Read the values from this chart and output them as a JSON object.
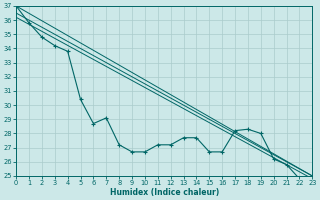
{
  "xlabel": "Humidex (Indice chaleur)",
  "background_color": "#cce8e8",
  "grid_color": "#aacccc",
  "line_color": "#006666",
  "xlim": [
    0,
    23
  ],
  "ylim": [
    25,
    37
  ],
  "yticks": [
    25,
    26,
    27,
    28,
    29,
    30,
    31,
    32,
    33,
    34,
    35,
    36,
    37
  ],
  "xticks": [
    0,
    1,
    2,
    3,
    4,
    5,
    6,
    7,
    8,
    9,
    10,
    11,
    12,
    13,
    14,
    15,
    16,
    17,
    18,
    19,
    20,
    21,
    22,
    23
  ],
  "series": [
    {
      "x": [
        0,
        1,
        2,
        3,
        4,
        5,
        6,
        7,
        8,
        9,
        10,
        11,
        12,
        13,
        14,
        15,
        16,
        17,
        18,
        19,
        20,
        21,
        22,
        23
      ],
      "y": [
        37,
        35.8,
        34.8,
        34.2,
        33.8,
        30.4,
        28.7,
        29.1,
        27.2,
        26.7,
        26.7,
        27.2,
        27.2,
        27.7,
        27.7,
        26.7,
        26.7,
        28.2,
        28.3,
        28.0,
        26.2,
        25.8,
        24.8,
        24.7
      ],
      "marker": "+"
    },
    {
      "x": [
        0,
        23
      ],
      "y": [
        37,
        25.0
      ]
    },
    {
      "x": [
        0,
        23
      ],
      "y": [
        36.5,
        25.0
      ]
    },
    {
      "x": [
        0,
        23
      ],
      "y": [
        36.2,
        24.8
      ]
    }
  ]
}
